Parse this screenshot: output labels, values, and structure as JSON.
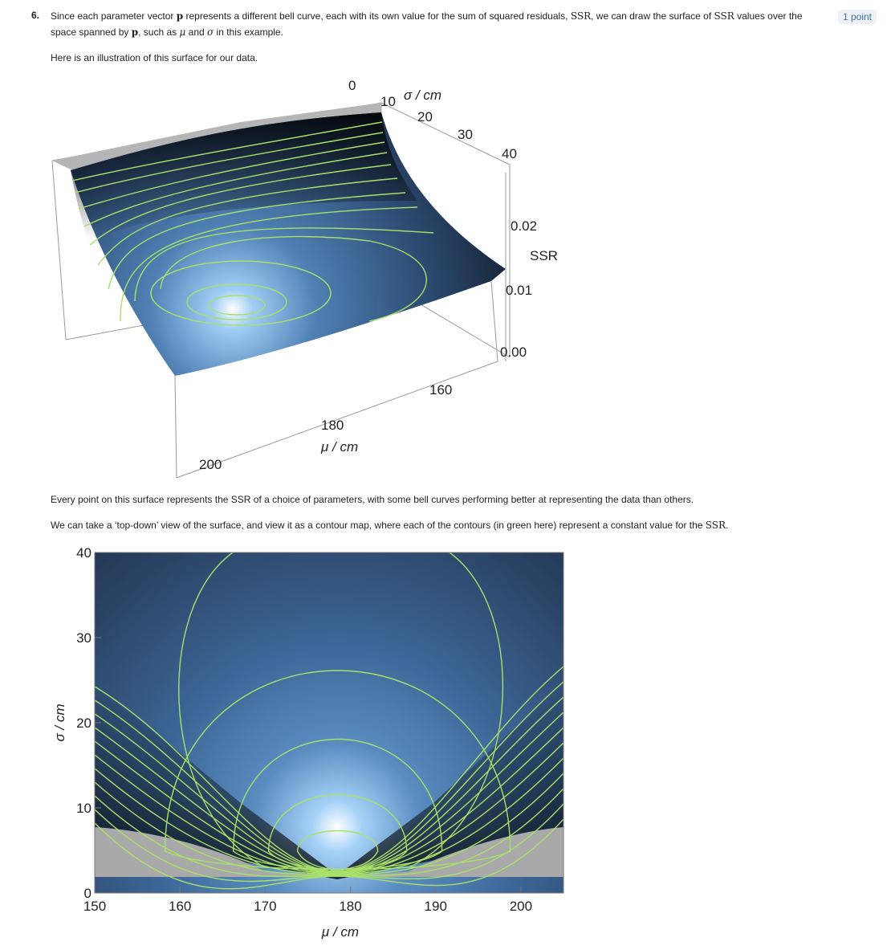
{
  "question": {
    "number": "6.",
    "points": "1 point",
    "para1_a": "Since each parameter vector ",
    "para1_p": "p",
    "para1_b": " represents a different bell curve, each with its own value for the sum of squared residuals, ",
    "para1_ssr": "SSR",
    "para1_c": ", we can draw the surface of ",
    "para1_ssr2": "SSR",
    "para1_d": " values over the space spanned by ",
    "para1_p2": "p",
    "para1_e": ", such as ",
    "para1_mu": "μ",
    "para1_f": " and ",
    "para1_sigma": "σ",
    "para1_g": " in this example.",
    "para2": "Here is an illustration of this surface for our data.",
    "para3": "Every point on this surface represents the SSR of a choice of parameters, with some bell curves performing better at representing the data than others.",
    "para4_a": "We can take a ‘top-down’ view of the surface, and view it as a contour map, where each of the contours (in green here) represent a constant value for the ",
    "para4_ssr": "SSR",
    "para4_b": "."
  },
  "surface_plot": {
    "sigma_axis_label": "σ / cm",
    "sigma_ticks": [
      "0",
      "10",
      "20",
      "30",
      "40"
    ],
    "mu_axis_label": "μ / cm",
    "mu_ticks": [
      "160",
      "180",
      "200"
    ],
    "ssr_axis_label": "SSR",
    "ssr_ticks": [
      "0.00",
      "0.01",
      "0.02"
    ],
    "contour_color": "#a8e06a"
  },
  "chart_data": {
    "type": "heatmap",
    "title": "",
    "xlabel": "μ / cm",
    "ylabel": "σ / cm",
    "xlim": [
      150,
      205
    ],
    "ylim": [
      0,
      40
    ],
    "x_ticks": [
      150,
      160,
      170,
      180,
      190,
      200
    ],
    "y_ticks": [
      0,
      10,
      20,
      30,
      40
    ],
    "minimum": {
      "mu": 178.5,
      "sigma": 7
    },
    "contour_color": "#a8e06a",
    "colormap": [
      "#000000",
      "#1e3350",
      "#3f6ea5",
      "#8fc0ee",
      "#ffffff"
    ]
  }
}
